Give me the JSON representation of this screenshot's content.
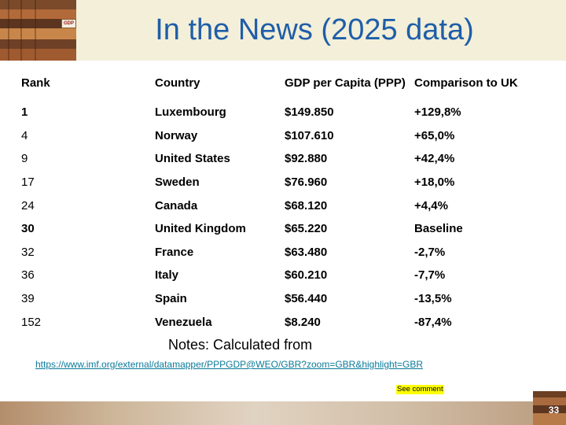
{
  "slide": {
    "title": "In the News (2025 data)",
    "header_sign_text": "GDP",
    "notes": "Notes: Calculated from",
    "link": "https://www.imf.org/external/datamapper/PPPGDP@WEO/GBR?zoom=GBR&highlight=GBR",
    "comment_tag": "See comment",
    "page_number": "33"
  },
  "table": {
    "headers": [
      "Rank",
      "Country",
      "GDP per Capita (PPP)",
      "Comparison to UK"
    ],
    "rows": [
      {
        "rank": "1",
        "country": "Luxembourg",
        "gdp": "$149.850",
        "comparison": "+129,8%",
        "rank_bold": true
      },
      {
        "rank": "4",
        "country": "Norway",
        "gdp": "$107.610",
        "comparison": "+65,0%",
        "rank_bold": false
      },
      {
        "rank": "9",
        "country": "United States",
        "gdp": "$92.880",
        "comparison": "+42,4%",
        "rank_bold": false
      },
      {
        "rank": "17",
        "country": "Sweden",
        "gdp": "$76.960",
        "comparison": "+18,0%",
        "rank_bold": false
      },
      {
        "rank": "24",
        "country": "Canada",
        "gdp": "$68.120",
        "comparison": "+4,4%",
        "rank_bold": false
      },
      {
        "rank": "30",
        "country": "United Kingdom",
        "gdp": "$65.220",
        "comparison": "Baseline",
        "rank_bold": true
      },
      {
        "rank": "32",
        "country": "France",
        "gdp": "$63.480",
        "comparison": "-2,7%",
        "rank_bold": false
      },
      {
        "rank": "36",
        "country": "Italy",
        "gdp": "$60.210",
        "comparison": "-7,7%",
        "rank_bold": false
      },
      {
        "rank": "39",
        "country": "Spain",
        "gdp": "$56.440",
        "comparison": "-13,5%",
        "rank_bold": false
      },
      {
        "rank": "152",
        "country": "Venezuela",
        "gdp": "$8.240",
        "comparison": "-87,4%",
        "rank_bold": false
      }
    ]
  },
  "colors": {
    "title": "#1f5ea8",
    "header_band": "#f3efd9",
    "link": "#0b7a9a",
    "comment_highlight": "#ffff00"
  }
}
